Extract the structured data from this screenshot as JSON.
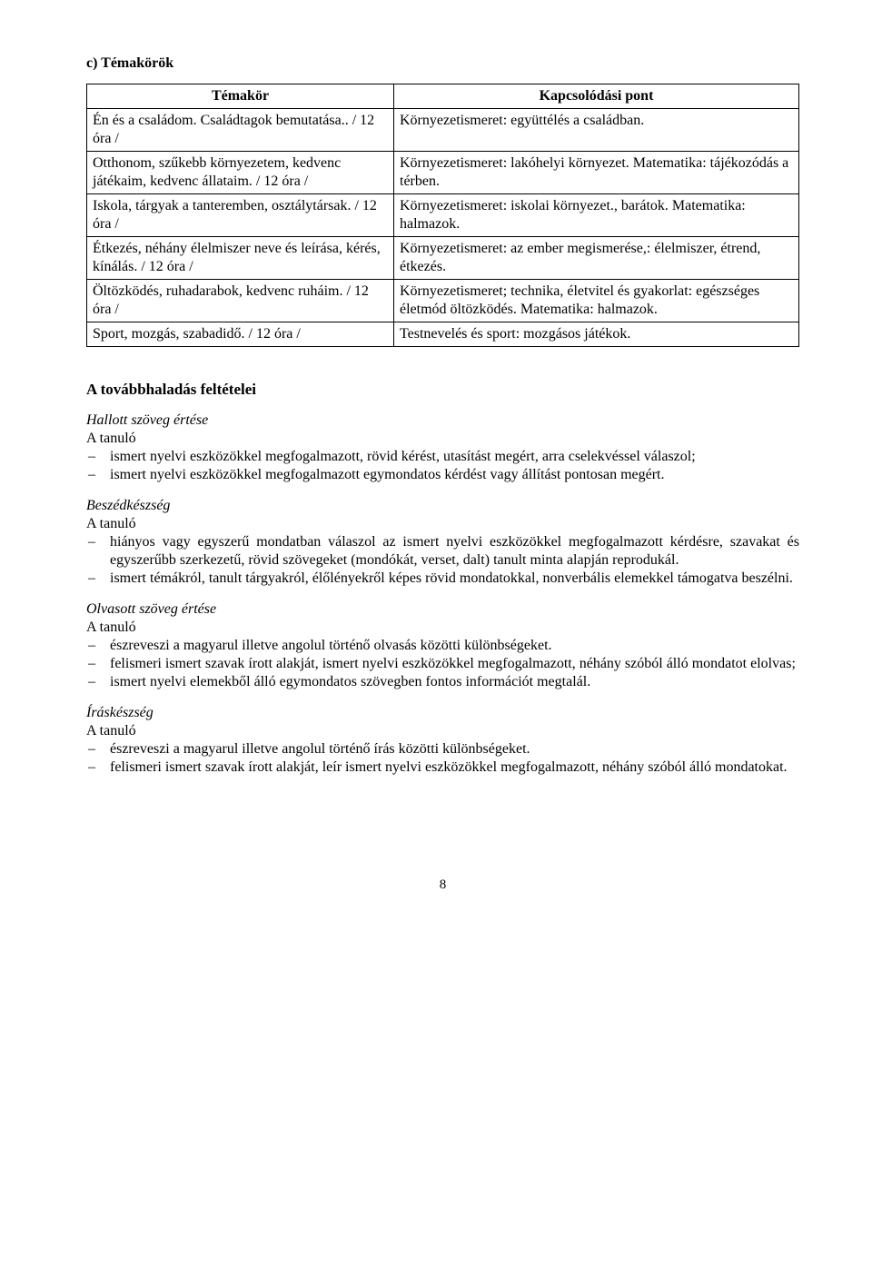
{
  "section_label": "c) Témakörök",
  "table": {
    "headers": {
      "left": "Témakör",
      "right": "Kapcsolódási pont"
    },
    "rows": [
      {
        "left": "Én és a családom. Családtagok bemutatása.. / 12 óra /",
        "right": "Környezetismeret: együttélés a családban."
      },
      {
        "left": "Otthonom, szűkebb környezetem, kedvenc játékaim, kedvenc állataim. / 12 óra /",
        "right": "Környezetismeret: lakóhelyi környezet. Matematika: tájékozódás a térben."
      },
      {
        "left": "Iskola, tárgyak a tanteremben, osztálytársak. / 12 óra /",
        "right": "Környezetismeret: iskolai környezet., barátok. Matematika: halmazok."
      },
      {
        "left": "Étkezés, néhány élelmiszer neve és leírása, kérés, kínálás. / 12 óra /",
        "right": "Környezetismeret: az ember megismerése,: élelmiszer, étrend, étkezés."
      },
      {
        "left": "Öltözködés, ruhadarabok, kedvenc ruháim. / 12 óra /",
        "right": "Környezetismeret; technika, életvitel és gyakorlat: egészséges életmód   öltözködés. Matematika: halmazok."
      },
      {
        "left": "Sport, mozgás, szabadidő. / 12 óra /",
        "right": "Testnevelés és sport: mozgásos játékok."
      }
    ]
  },
  "progress_title": "A továbbhaladás feltételei",
  "pupil_label": "A tanuló",
  "skills": {
    "listening": {
      "title": "Hallott szöveg értése",
      "items": [
        "ismert nyelvi eszközökkel megfogalmazott, rövid kérést, utasítást megért, arra cselekvéssel válaszol;",
        "ismert nyelvi eszközökkel megfogalmazott egymondatos kérdést vagy állítást pontosan megért."
      ]
    },
    "speaking": {
      "title": "Beszédkészség",
      "items": [
        "hiányos vagy egyszerű mondatban válaszol az ismert nyelvi eszközökkel megfogalmazott kérdésre, szavakat és egyszerűbb szerkezetű, rövid szövegeket (mondókát, verset, dalt) tanult minta alapján reprodukál.",
        "ismert témákról, tanult tárgyakról, élőlényekről képes rövid mondatokkal, nonverbális elemekkel támogatva beszélni."
      ]
    },
    "reading": {
      "title": "Olvasott szöveg értése",
      "items": [
        "észreveszi a magyarul illetve angolul történő olvasás közötti különbségeket.",
        "felismeri ismert szavak írott alakját, ismert nyelvi eszközökkel megfogalmazott, néhány szóból álló mondatot elolvas;",
        "ismert nyelvi elemekből álló egymondatos szövegben fontos információt megtalál."
      ]
    },
    "writing": {
      "title": "Íráskészség",
      "items": [
        "észreveszi a magyarul illetve angolul történő írás közötti különbségeket.",
        "felismeri ismert szavak írott alakját, leír ismert nyelvi eszközökkel megfogalmazott, néhány szóból álló mondatokat."
      ]
    }
  },
  "page_number": "8"
}
